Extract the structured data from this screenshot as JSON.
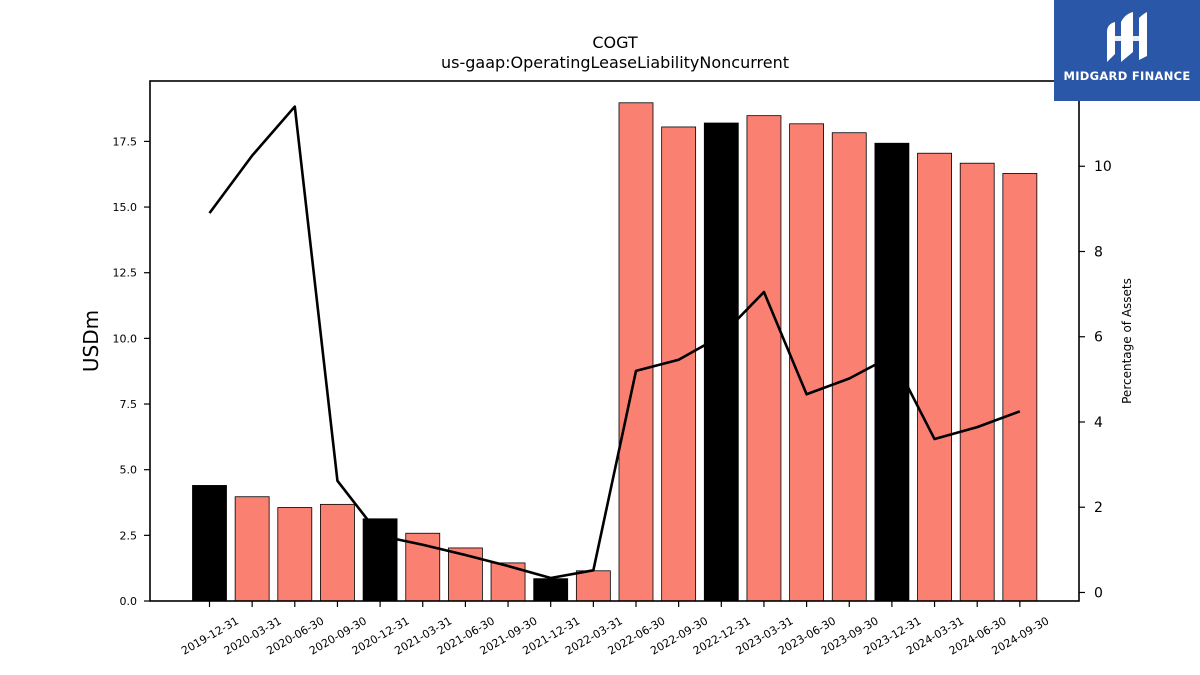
{
  "brand": {
    "name": "MIDGARD FINANCE",
    "color": "#2b57a8"
  },
  "chart_data": {
    "type": "bar",
    "title": "COGT",
    "subtitle": "us-gaap:OperatingLeaseLiabilityNoncurrent",
    "ylabel": "USDm",
    "y2label": "Percentage of Assets",
    "ylim": [
      0,
      19.8
    ],
    "y2lim": [
      -0.2,
      12.0
    ],
    "yticks": [
      "0.0",
      "2.5",
      "5.0",
      "7.5",
      "10.0",
      "12.5",
      "15.0",
      "17.5"
    ],
    "y2ticks": [
      "0",
      "2",
      "4",
      "6",
      "8",
      "10"
    ],
    "categories": [
      "2019-12-31",
      "2020-03-31",
      "2020-06-30",
      "2020-09-30",
      "2020-12-31",
      "2021-03-31",
      "2021-06-30",
      "2021-09-30",
      "2021-12-31",
      "2022-03-31",
      "2022-06-30",
      "2022-09-30",
      "2022-12-31",
      "2023-03-31",
      "2023-06-30",
      "2023-09-30",
      "2023-12-31",
      "2024-03-31",
      "2024-06-30",
      "2024-09-30"
    ],
    "values": [
      4.4,
      3.97,
      3.56,
      3.68,
      3.13,
      2.58,
      2.02,
      1.45,
      0.85,
      1.15,
      18.97,
      18.05,
      18.2,
      18.48,
      18.17,
      17.83,
      17.43,
      17.05,
      16.67,
      16.28
    ],
    "bar_colors": [
      "#000000",
      "#fa8072",
      "#fa8072",
      "#fa8072",
      "#000000",
      "#fa8072",
      "#fa8072",
      "#fa8072",
      "#000000",
      "#fa8072",
      "#fa8072",
      "#fa8072",
      "#000000",
      "#fa8072",
      "#fa8072",
      "#fa8072",
      "#000000",
      "#fa8072",
      "#fa8072",
      "#fa8072"
    ],
    "line_values": [
      8.9,
      10.25,
      11.4,
      2.62,
      1.33,
      1.12,
      0.88,
      0.62,
      0.34,
      0.52,
      5.2,
      5.46,
      6.02,
      7.05,
      4.65,
      5.02,
      5.55,
      3.6,
      3.88,
      4.25
    ],
    "line_color": "#000000",
    "grid": false,
    "legend": "none"
  }
}
